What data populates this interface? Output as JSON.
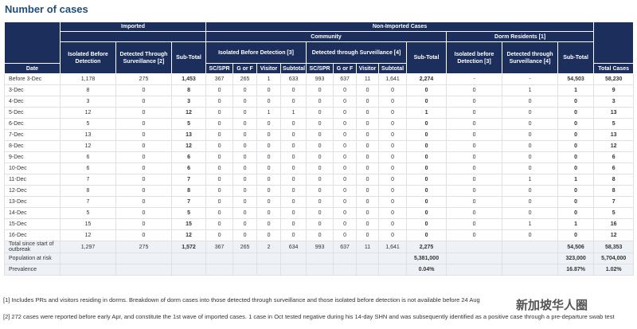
{
  "title": "Number of cases",
  "table": {
    "groups": {
      "imported": "Imported",
      "non_imported": "Non-Imported Cases",
      "community": "Community",
      "dorm": "Dorm Residents [1]"
    },
    "subheads": {
      "imp_iso": "Isolated Before Detection",
      "imp_det": "Detected Through Surveillance [2]",
      "imp_sub": "Sub-Total",
      "com_iso": "Isolated Before Detection [3]",
      "com_det": "Detected through Surveillance [4]",
      "com_sub": "Sub-Total",
      "dorm_iso": "Isolated before Detection [3]",
      "dorm_det": "Detected through Surveillance [4]",
      "dorm_sub": "Sub-Total"
    },
    "columns": {
      "date": "Date",
      "iso": [
        "SC/SPR",
        "G or F",
        "Visitor",
        "Subtotal"
      ],
      "det": [
        "SC/SPR",
        "G or F",
        "Visitor",
        "Subtotal"
      ],
      "total": "Total Cases"
    },
    "rows": [
      {
        "label": "Before 3-Dec",
        "cells": [
          "1,178",
          "275",
          "1,453",
          "367",
          "265",
          "1",
          "633",
          "993",
          "637",
          "11",
          "1,641",
          "2,274",
          "-",
          "-",
          "54,503",
          "58,230"
        ]
      },
      {
        "label": "3-Dec",
        "cells": [
          "8",
          "0",
          "8",
          "0",
          "0",
          "0",
          "0",
          "0",
          "0",
          "0",
          "0",
          "0",
          "0",
          "1",
          "1",
          "9"
        ]
      },
      {
        "label": "4-Dec",
        "cells": [
          "3",
          "0",
          "3",
          "0",
          "0",
          "0",
          "0",
          "0",
          "0",
          "0",
          "0",
          "0",
          "0",
          "0",
          "0",
          "3"
        ]
      },
      {
        "label": "5-Dec",
        "cells": [
          "12",
          "0",
          "12",
          "0",
          "0",
          "1",
          "1",
          "0",
          "0",
          "0",
          "0",
          "1",
          "0",
          "0",
          "0",
          "13"
        ]
      },
      {
        "label": "6-Dec",
        "cells": [
          "5",
          "0",
          "5",
          "0",
          "0",
          "0",
          "0",
          "0",
          "0",
          "0",
          "0",
          "0",
          "0",
          "0",
          "0",
          "5"
        ]
      },
      {
        "label": "7-Dec",
        "cells": [
          "13",
          "0",
          "13",
          "0",
          "0",
          "0",
          "0",
          "0",
          "0",
          "0",
          "0",
          "0",
          "0",
          "0",
          "0",
          "13"
        ]
      },
      {
        "label": "8-Dec",
        "cells": [
          "12",
          "0",
          "12",
          "0",
          "0",
          "0",
          "0",
          "0",
          "0",
          "0",
          "0",
          "0",
          "0",
          "0",
          "0",
          "12"
        ]
      },
      {
        "label": "9-Dec",
        "cells": [
          "6",
          "0",
          "6",
          "0",
          "0",
          "0",
          "0",
          "0",
          "0",
          "0",
          "0",
          "0",
          "0",
          "0",
          "0",
          "6"
        ]
      },
      {
        "label": "10-Dec",
        "cells": [
          "6",
          "0",
          "6",
          "0",
          "0",
          "0",
          "0",
          "0",
          "0",
          "0",
          "0",
          "0",
          "0",
          "0",
          "0",
          "6"
        ]
      },
      {
        "label": "11-Dec",
        "cells": [
          "7",
          "0",
          "7",
          "0",
          "0",
          "0",
          "0",
          "0",
          "0",
          "0",
          "0",
          "0",
          "0",
          "1",
          "1",
          "8"
        ]
      },
      {
        "label": "12-Dec",
        "cells": [
          "8",
          "0",
          "8",
          "0",
          "0",
          "0",
          "0",
          "0",
          "0",
          "0",
          "0",
          "0",
          "0",
          "0",
          "0",
          "8"
        ]
      },
      {
        "label": "13-Dec",
        "cells": [
          "7",
          "0",
          "7",
          "0",
          "0",
          "0",
          "0",
          "0",
          "0",
          "0",
          "0",
          "0",
          "0",
          "0",
          "0",
          "7"
        ]
      },
      {
        "label": "14-Dec",
        "cells": [
          "5",
          "0",
          "5",
          "0",
          "0",
          "0",
          "0",
          "0",
          "0",
          "0",
          "0",
          "0",
          "0",
          "0",
          "0",
          "5"
        ]
      },
      {
        "label": "15-Dec",
        "cells": [
          "15",
          "0",
          "15",
          "0",
          "0",
          "0",
          "0",
          "0",
          "0",
          "0",
          "0",
          "0",
          "0",
          "1",
          "1",
          "16"
        ]
      },
      {
        "label": "16-Dec",
        "cells": [
          "12",
          "0",
          "12",
          "0",
          "0",
          "0",
          "0",
          "0",
          "0",
          "0",
          "0",
          "0",
          "0",
          "0",
          "0",
          "12"
        ]
      }
    ],
    "footer_rows": [
      {
        "label": "Total since start of outbreak",
        "cells": [
          "1,297",
          "275",
          "1,572",
          "367",
          "265",
          "2",
          "634",
          "993",
          "637",
          "11",
          "1,641",
          "2,275",
          null,
          null,
          "54,506",
          "58,353"
        ]
      },
      {
        "label": "Population at risk",
        "cells": [
          null,
          null,
          null,
          null,
          null,
          null,
          null,
          null,
          null,
          null,
          null,
          "5,381,000",
          null,
          null,
          "323,000",
          "5,704,000"
        ]
      },
      {
        "label": "Prevalence",
        "cells": [
          null,
          null,
          null,
          null,
          null,
          null,
          null,
          null,
          null,
          null,
          null,
          "0.04%",
          null,
          null,
          "16.87%",
          "1.02%"
        ]
      }
    ]
  },
  "notes": [
    "[1] Includes PRs and visitors residing in dorms. Breakdown of dorm cases into those detected through surveillance and those isolated before detection is not available before 24 Aug",
    "[2] 272 cases were reported before early Apr, and constitute the 1st wave of imported cases. 1 case in Oct tested negative during his 14-day SHN and was subsequently identified as a positive case through a pre-departure swab test"
  ],
  "watermark": "新加坡华人圈"
}
